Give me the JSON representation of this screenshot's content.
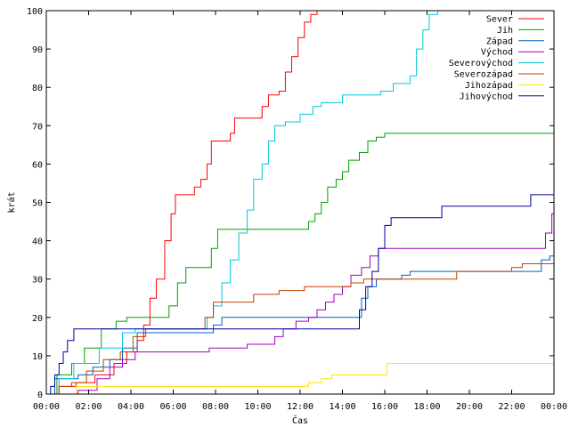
{
  "chart_data": {
    "type": "line",
    "xlabel": "Čas",
    "ylabel": "krát",
    "xlim": [
      0,
      24
    ],
    "ylim": [
      0,
      100
    ],
    "x_ticks": [
      {
        "v": 0,
        "label": "00:00"
      },
      {
        "v": 2,
        "label": "02:00"
      },
      {
        "v": 4,
        "label": "04:00"
      },
      {
        "v": 6,
        "label": "06:00"
      },
      {
        "v": 8,
        "label": "08:00"
      },
      {
        "v": 10,
        "label": "10:00"
      },
      {
        "v": 12,
        "label": "12:00"
      },
      {
        "v": 14,
        "label": "14:00"
      },
      {
        "v": 16,
        "label": "16:00"
      },
      {
        "v": 18,
        "label": "18:00"
      },
      {
        "v": 20,
        "label": "20:00"
      },
      {
        "v": 22,
        "label": "22:00"
      },
      {
        "v": 24,
        "label": "00:00"
      }
    ],
    "y_ticks": [
      0,
      10,
      20,
      30,
      40,
      50,
      60,
      70,
      80,
      90,
      100
    ],
    "grid": false,
    "legend_position": "top-right",
    "series": [
      {
        "name": "Sever",
        "color": "#ff0000",
        "points": [
          [
            0,
            0
          ],
          [
            0.6,
            2
          ],
          [
            1.4,
            3
          ],
          [
            2.3,
            5
          ],
          [
            3.2,
            8
          ],
          [
            3.8,
            11
          ],
          [
            4.3,
            14
          ],
          [
            4.6,
            18
          ],
          [
            4.9,
            25
          ],
          [
            5.2,
            30
          ],
          [
            5.6,
            40
          ],
          [
            5.9,
            47
          ],
          [
            6.1,
            52
          ],
          [
            6.8,
            52
          ],
          [
            7.0,
            54
          ],
          [
            7.3,
            56
          ],
          [
            7.6,
            60
          ],
          [
            7.8,
            66
          ],
          [
            8.5,
            66
          ],
          [
            8.7,
            68
          ],
          [
            8.9,
            72
          ],
          [
            10.0,
            72
          ],
          [
            10.2,
            75
          ],
          [
            10.5,
            78
          ],
          [
            11.0,
            79
          ],
          [
            11.3,
            84
          ],
          [
            11.6,
            88
          ],
          [
            11.9,
            93
          ],
          [
            12.2,
            97
          ],
          [
            12.5,
            99
          ],
          [
            12.8,
            100
          ],
          [
            13.2,
            100
          ]
        ]
      },
      {
        "name": "Jih",
        "color": "#00a000",
        "points": [
          [
            0,
            0
          ],
          [
            0.5,
            5
          ],
          [
            1.2,
            8
          ],
          [
            1.8,
            12
          ],
          [
            2.6,
            17
          ],
          [
            3.3,
            19
          ],
          [
            3.8,
            20
          ],
          [
            5.5,
            20
          ],
          [
            5.8,
            23
          ],
          [
            6.2,
            29
          ],
          [
            6.6,
            33
          ],
          [
            7.6,
            33
          ],
          [
            7.8,
            38
          ],
          [
            8.1,
            43
          ],
          [
            12.2,
            43
          ],
          [
            12.4,
            45
          ],
          [
            12.7,
            47
          ],
          [
            13.0,
            50
          ],
          [
            13.3,
            54
          ],
          [
            13.7,
            56
          ],
          [
            14.0,
            58
          ],
          [
            14.3,
            61
          ],
          [
            14.8,
            63
          ],
          [
            15.2,
            66
          ],
          [
            15.6,
            67
          ],
          [
            16.0,
            68
          ],
          [
            23.8,
            68
          ],
          [
            24,
            71
          ]
        ]
      },
      {
        "name": "Západ",
        "color": "#0060c0",
        "points": [
          [
            0,
            0
          ],
          [
            0.4,
            4
          ],
          [
            1.5,
            5
          ],
          [
            2.2,
            7
          ],
          [
            3.0,
            9
          ],
          [
            3.6,
            12
          ],
          [
            4.3,
            16
          ],
          [
            7.6,
            16
          ],
          [
            7.9,
            18
          ],
          [
            8.3,
            20
          ],
          [
            14.7,
            20
          ],
          [
            14.9,
            25
          ],
          [
            15.2,
            28
          ],
          [
            15.6,
            30
          ],
          [
            16.8,
            31
          ],
          [
            17.2,
            32
          ],
          [
            23.2,
            32
          ],
          [
            23.4,
            35
          ],
          [
            23.8,
            36
          ],
          [
            24,
            38
          ]
        ]
      },
      {
        "name": "Východ",
        "color": "#a000c0",
        "points": [
          [
            0,
            0
          ],
          [
            1.5,
            1
          ],
          [
            2.4,
            4
          ],
          [
            3.0,
            7
          ],
          [
            3.6,
            9
          ],
          [
            4.2,
            11
          ],
          [
            7.4,
            11
          ],
          [
            7.7,
            12
          ],
          [
            9.2,
            12
          ],
          [
            9.5,
            13
          ],
          [
            10.5,
            13
          ],
          [
            10.8,
            15
          ],
          [
            11.2,
            17
          ],
          [
            11.8,
            19
          ],
          [
            12.4,
            20
          ],
          [
            12.8,
            22
          ],
          [
            13.2,
            24
          ],
          [
            13.6,
            26
          ],
          [
            14.0,
            28
          ],
          [
            14.4,
            31
          ],
          [
            14.9,
            33
          ],
          [
            15.3,
            36
          ],
          [
            15.7,
            38
          ],
          [
            23.3,
            38
          ],
          [
            23.6,
            42
          ],
          [
            23.9,
            47
          ],
          [
            24,
            47
          ]
        ]
      },
      {
        "name": "Severovýchod",
        "color": "#00c8d8",
        "points": [
          [
            0,
            0
          ],
          [
            0.6,
            4
          ],
          [
            1.3,
            8
          ],
          [
            2.5,
            12
          ],
          [
            3.6,
            16
          ],
          [
            4.2,
            17
          ],
          [
            7.4,
            17
          ],
          [
            7.6,
            20
          ],
          [
            7.9,
            23
          ],
          [
            8.3,
            29
          ],
          [
            8.7,
            35
          ],
          [
            9.1,
            42
          ],
          [
            9.5,
            48
          ],
          [
            9.8,
            56
          ],
          [
            10.2,
            60
          ],
          [
            10.5,
            66
          ],
          [
            10.8,
            70
          ],
          [
            11.3,
            71
          ],
          [
            12.0,
            73
          ],
          [
            12.6,
            75
          ],
          [
            13.0,
            76
          ],
          [
            14.0,
            78
          ],
          [
            15.8,
            79
          ],
          [
            16.4,
            81
          ],
          [
            17.2,
            83
          ],
          [
            17.5,
            90
          ],
          [
            17.8,
            95
          ],
          [
            18.1,
            99
          ],
          [
            18.5,
            100
          ],
          [
            19.0,
            100
          ]
        ]
      },
      {
        "name": "Severozápad",
        "color": "#c04000",
        "points": [
          [
            0,
            0
          ],
          [
            0.6,
            2
          ],
          [
            1.2,
            3
          ],
          [
            1.9,
            6
          ],
          [
            2.7,
            9
          ],
          [
            3.5,
            11
          ],
          [
            4.1,
            15
          ],
          [
            4.7,
            17
          ],
          [
            7.1,
            17
          ],
          [
            7.5,
            20
          ],
          [
            7.9,
            24
          ],
          [
            9.4,
            24
          ],
          [
            9.8,
            26
          ],
          [
            11.0,
            27
          ],
          [
            12.2,
            28
          ],
          [
            13.8,
            28
          ],
          [
            14.4,
            29
          ],
          [
            15.0,
            30
          ],
          [
            19.2,
            30
          ],
          [
            19.4,
            32
          ],
          [
            21.0,
            32
          ],
          [
            22.0,
            33
          ],
          [
            22.5,
            34
          ],
          [
            24,
            34
          ]
        ]
      },
      {
        "name": "Jihozápad",
        "color": "#ffe000",
        "points": [
          [
            0,
            0
          ],
          [
            1.4,
            2
          ],
          [
            12.2,
            2
          ],
          [
            12.4,
            3
          ],
          [
            13.0,
            4
          ],
          [
            13.5,
            5
          ],
          [
            15.8,
            5
          ],
          [
            16.1,
            8
          ],
          [
            24,
            8
          ]
        ]
      },
      {
        "name": "Jihovýchod",
        "color": "#0000a0",
        "points": [
          [
            0,
            0
          ],
          [
            0.2,
            2
          ],
          [
            0.4,
            5
          ],
          [
            0.6,
            8
          ],
          [
            0.8,
            11
          ],
          [
            1.0,
            14
          ],
          [
            1.3,
            17
          ],
          [
            14.5,
            17
          ],
          [
            14.8,
            22
          ],
          [
            15.1,
            28
          ],
          [
            15.4,
            32
          ],
          [
            15.7,
            38
          ],
          [
            16.0,
            44
          ],
          [
            16.3,
            46
          ],
          [
            18.4,
            46
          ],
          [
            18.7,
            49
          ],
          [
            22.7,
            49
          ],
          [
            22.9,
            52
          ],
          [
            24,
            52
          ]
        ]
      }
    ]
  }
}
